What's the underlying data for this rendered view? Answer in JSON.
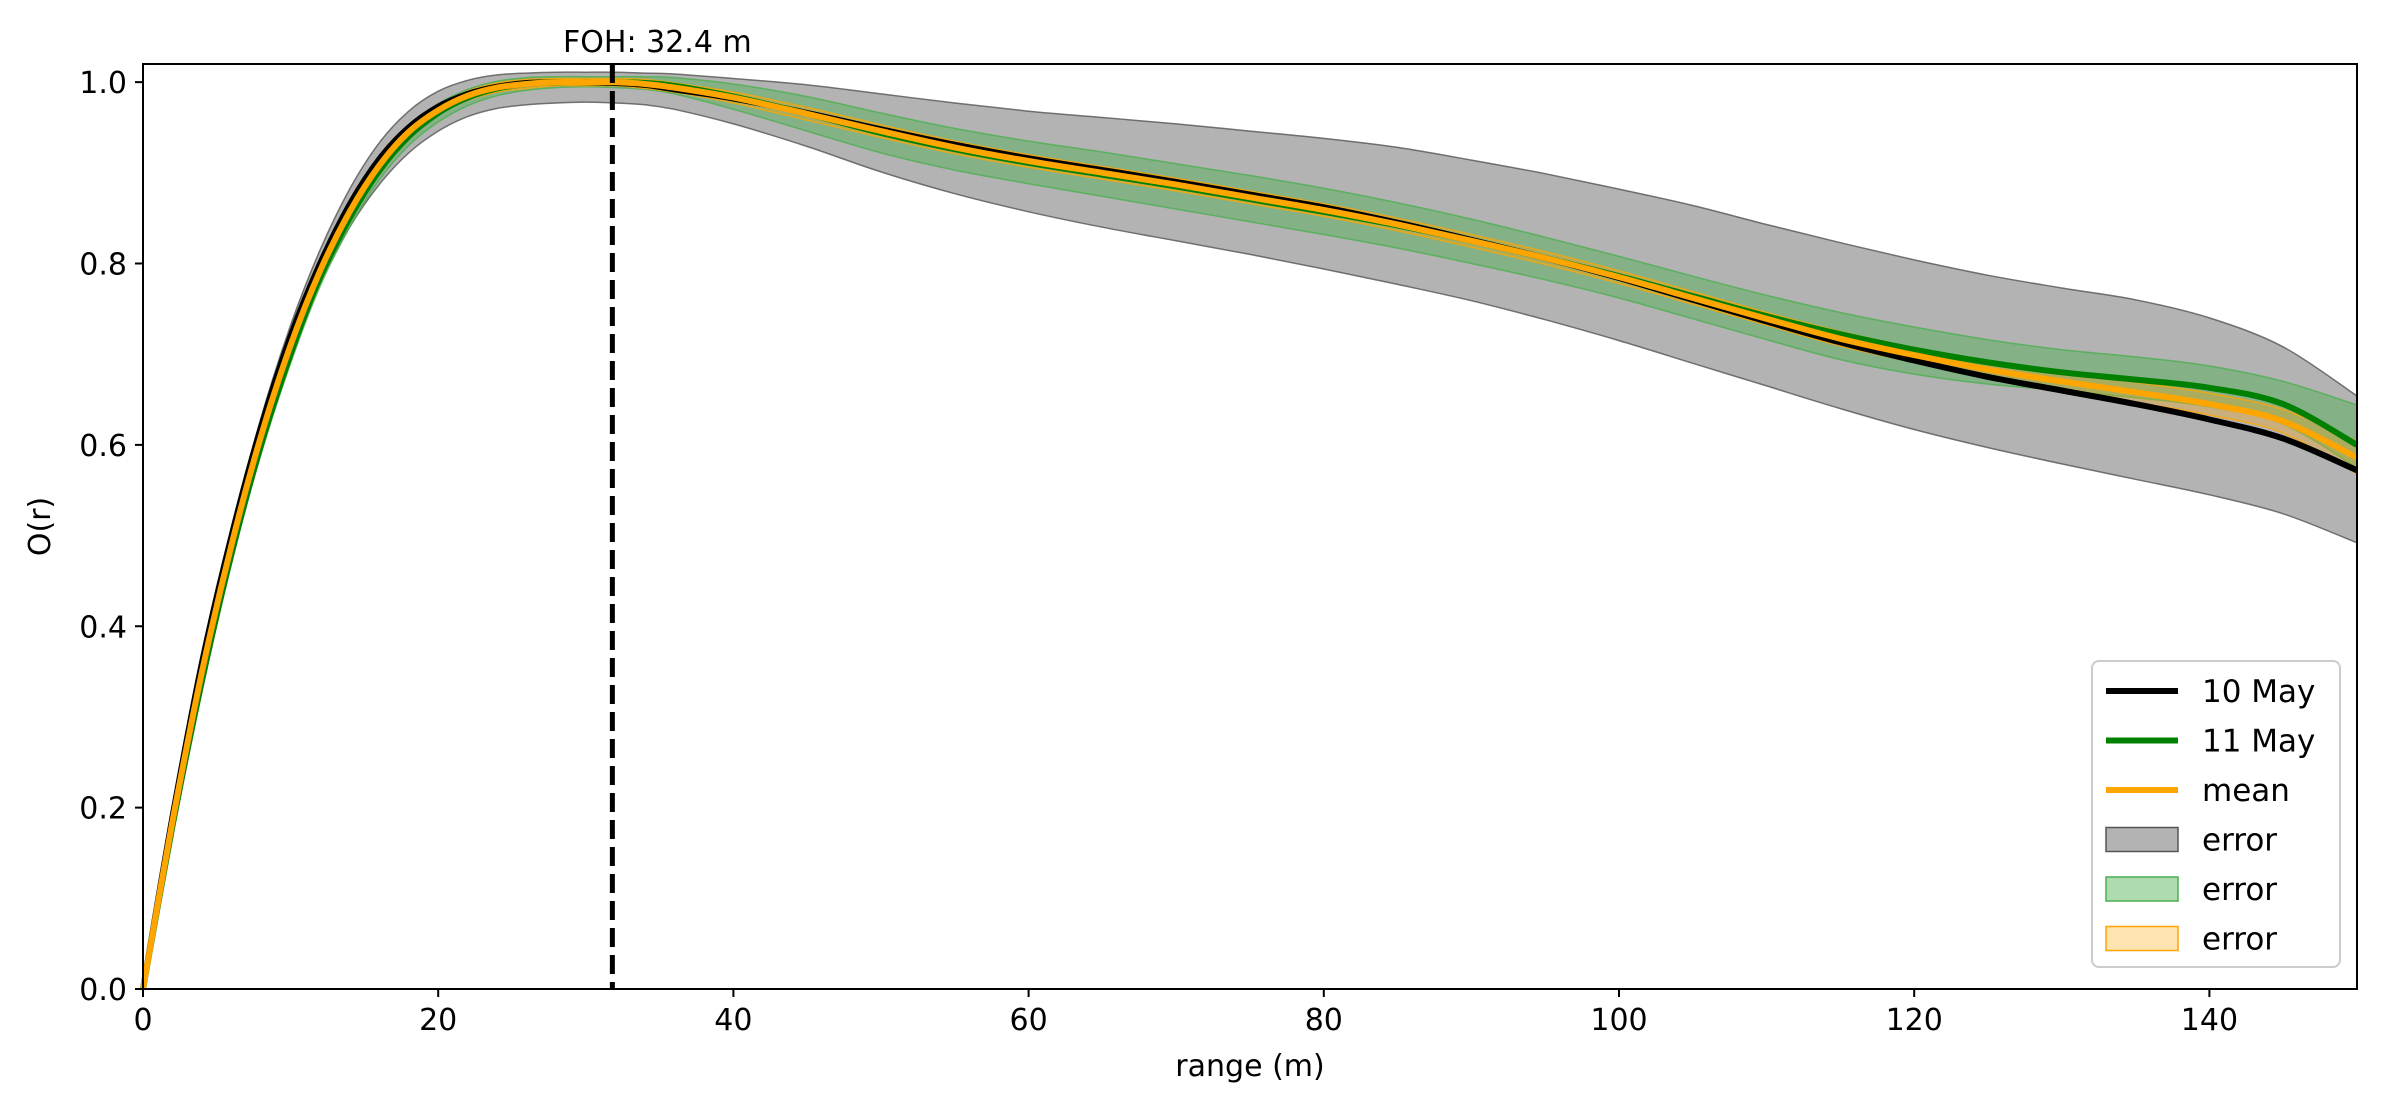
{
  "chart_data": {
    "type": "line",
    "xlabel": "range (m)",
    "ylabel": "O(r)",
    "xlim": [
      0,
      150
    ],
    "ylim": [
      0,
      1.02
    ],
    "xticks": [
      0,
      20,
      40,
      60,
      80,
      100,
      120,
      140
    ],
    "yticks": [
      0.0,
      0.2,
      0.4,
      0.6,
      0.8,
      1.0
    ],
    "xtick_labels": [
      "0",
      "20",
      "40",
      "60",
      "80",
      "100",
      "120",
      "140"
    ],
    "ytick_labels": [
      "0.0",
      "0.2",
      "0.4",
      "0.6",
      "0.8",
      "1.0"
    ],
    "grid": false,
    "legend_position": "lower-right",
    "annotation": {
      "text": "FOH: 32.4 m",
      "x": 31.8
    },
    "x": [
      0,
      2,
      4,
      6,
      8,
      10,
      12,
      14,
      16,
      18,
      20,
      22,
      24,
      26,
      28,
      30,
      32,
      34,
      36,
      40,
      45,
      50,
      55,
      60,
      65,
      70,
      75,
      80,
      85,
      90,
      95,
      100,
      105,
      110,
      115,
      120,
      125,
      130,
      135,
      140,
      145,
      150
    ],
    "series": [
      {
        "name": "10 May",
        "color": "#000000",
        "values": [
          0.0,
          0.19,
          0.36,
          0.5,
          0.62,
          0.72,
          0.8,
          0.865,
          0.915,
          0.95,
          0.973,
          0.987,
          0.995,
          0.999,
          1.0,
          1.0,
          0.999,
          0.997,
          0.992,
          0.982,
          0.966,
          0.948,
          0.931,
          0.916,
          0.903,
          0.89,
          0.876,
          0.862,
          0.845,
          0.826,
          0.806,
          0.784,
          0.76,
          0.736,
          0.713,
          0.693,
          0.675,
          0.66,
          0.645,
          0.628,
          0.607,
          0.572
        ]
      },
      {
        "name": "11 May",
        "color": "#008000",
        "values": [
          0.0,
          0.18,
          0.34,
          0.48,
          0.6,
          0.7,
          0.785,
          0.85,
          0.902,
          0.94,
          0.966,
          0.983,
          0.993,
          0.998,
          1.0,
          1.0,
          1.0,
          0.999,
          0.996,
          0.984,
          0.965,
          0.944,
          0.926,
          0.911,
          0.898,
          0.885,
          0.871,
          0.857,
          0.842,
          0.825,
          0.806,
          0.786,
          0.764,
          0.742,
          0.722,
          0.705,
          0.691,
          0.68,
          0.672,
          0.663,
          0.645,
          0.6
        ]
      },
      {
        "name": "mean",
        "color": "#ffa500",
        "values": [
          0.0,
          0.185,
          0.35,
          0.49,
          0.61,
          0.71,
          0.792,
          0.857,
          0.908,
          0.945,
          0.969,
          0.985,
          0.994,
          0.998,
          1.0,
          1.0,
          1.0,
          0.998,
          0.994,
          0.983,
          0.965,
          0.946,
          0.928,
          0.913,
          0.9,
          0.887,
          0.873,
          0.859,
          0.843,
          0.825,
          0.806,
          0.785,
          0.762,
          0.739,
          0.717,
          0.699,
          0.683,
          0.67,
          0.658,
          0.645,
          0.626,
          0.586
        ]
      }
    ],
    "error_bands": [
      {
        "name": "error",
        "fill": "#808080",
        "opacity": 0.6,
        "edge": "#555555",
        "upper": [
          0.0,
          0.192,
          0.365,
          0.507,
          0.63,
          0.732,
          0.815,
          0.882,
          0.933,
          0.968,
          0.99,
          1.002,
          1.008,
          1.01,
          1.011,
          1.011,
          1.011,
          1.01,
          1.009,
          1.004,
          0.997,
          0.987,
          0.977,
          0.968,
          0.961,
          0.954,
          0.946,
          0.938,
          0.928,
          0.914,
          0.899,
          0.882,
          0.864,
          0.843,
          0.823,
          0.804,
          0.787,
          0.773,
          0.76,
          0.74,
          0.708,
          0.654
        ],
        "lower": [
          0.0,
          0.185,
          0.352,
          0.49,
          0.605,
          0.7,
          0.778,
          0.84,
          0.887,
          0.922,
          0.946,
          0.962,
          0.971,
          0.975,
          0.977,
          0.978,
          0.977,
          0.975,
          0.97,
          0.954,
          0.929,
          0.901,
          0.877,
          0.857,
          0.84,
          0.825,
          0.81,
          0.794,
          0.777,
          0.759,
          0.738,
          0.715,
          0.69,
          0.665,
          0.64,
          0.617,
          0.597,
          0.579,
          0.562,
          0.545,
          0.524,
          0.492
        ]
      },
      {
        "name": "error",
        "fill": "#4caf50",
        "opacity": 0.45,
        "edge": "#4caf50",
        "upper": [
          0.0,
          0.185,
          0.35,
          0.49,
          0.61,
          0.712,
          0.795,
          0.86,
          0.912,
          0.95,
          0.976,
          0.992,
          1.001,
          1.005,
          1.006,
          1.006,
          1.006,
          1.006,
          1.005,
          0.998,
          0.984,
          0.966,
          0.949,
          0.935,
          0.923,
          0.91,
          0.897,
          0.883,
          0.867,
          0.849,
          0.829,
          0.808,
          0.786,
          0.765,
          0.746,
          0.73,
          0.716,
          0.705,
          0.697,
          0.687,
          0.67,
          0.644
        ],
        "lower": [
          0.0,
          0.175,
          0.33,
          0.47,
          0.59,
          0.69,
          0.775,
          0.84,
          0.892,
          0.93,
          0.956,
          0.974,
          0.985,
          0.991,
          0.994,
          0.995,
          0.994,
          0.992,
          0.987,
          0.97,
          0.946,
          0.922,
          0.903,
          0.888,
          0.874,
          0.86,
          0.846,
          0.832,
          0.817,
          0.8,
          0.782,
          0.762,
          0.739,
          0.716,
          0.694,
          0.678,
          0.667,
          0.66,
          0.652,
          0.642,
          0.623,
          0.575
        ]
      },
      {
        "name": "error",
        "fill": "#ffa500",
        "opacity": 0.3,
        "edge": "#ffa500",
        "upper": [
          0.0,
          0.19,
          0.355,
          0.495,
          0.615,
          0.715,
          0.797,
          0.862,
          0.913,
          0.95,
          0.974,
          0.99,
          0.999,
          1.003,
          1.004,
          1.004,
          1.004,
          1.003,
          0.999,
          0.989,
          0.972,
          0.953,
          0.935,
          0.92,
          0.907,
          0.894,
          0.88,
          0.866,
          0.85,
          0.832,
          0.813,
          0.792,
          0.769,
          0.746,
          0.725,
          0.707,
          0.692,
          0.68,
          0.669,
          0.657,
          0.639,
          0.604
        ],
        "lower": [
          0.0,
          0.18,
          0.345,
          0.485,
          0.605,
          0.705,
          0.787,
          0.852,
          0.903,
          0.94,
          0.964,
          0.98,
          0.989,
          0.993,
          0.996,
          0.996,
          0.996,
          0.993,
          0.989,
          0.977,
          0.958,
          0.939,
          0.921,
          0.906,
          0.893,
          0.88,
          0.866,
          0.852,
          0.836,
          0.818,
          0.799,
          0.778,
          0.755,
          0.732,
          0.709,
          0.691,
          0.674,
          0.66,
          0.647,
          0.633,
          0.613,
          0.568
        ]
      }
    ]
  }
}
